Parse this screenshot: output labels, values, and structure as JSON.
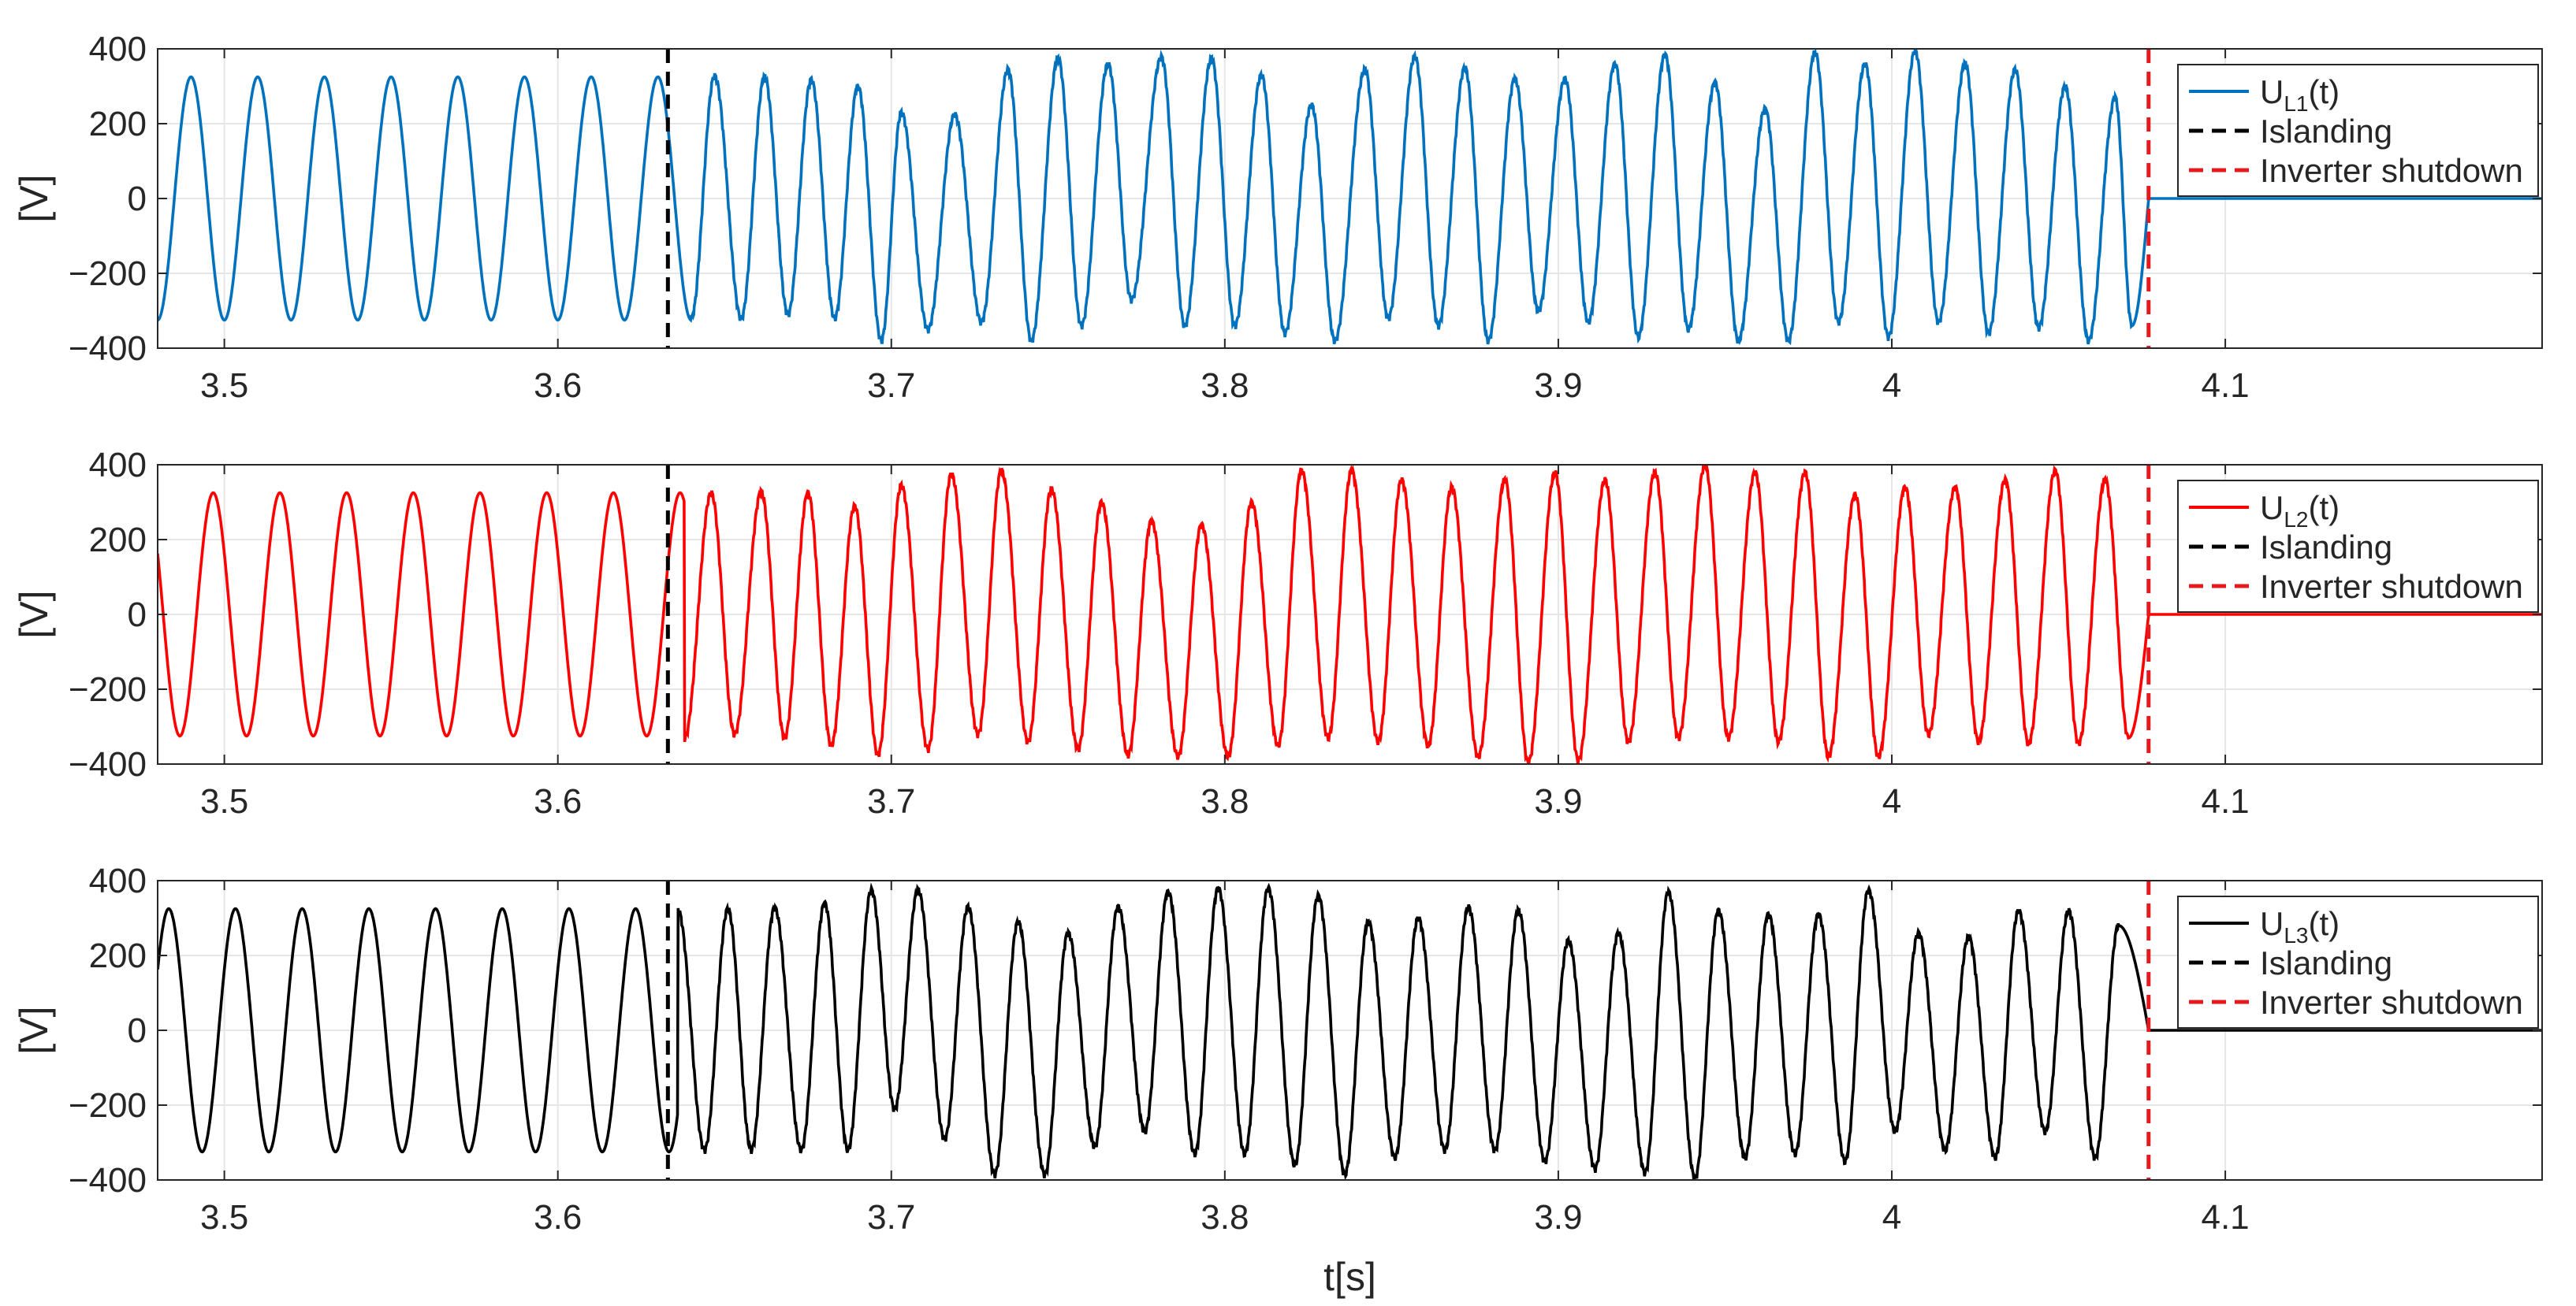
{
  "chart_data": [
    {
      "type": "line",
      "panel": "UL1",
      "ylabel": "[V]",
      "xlabel": "",
      "xlim": [
        3.48,
        4.195
      ],
      "ylim": [
        -400,
        400
      ],
      "xticks": [
        3.5,
        3.6,
        3.7,
        3.8,
        3.9,
        4,
        4.1
      ],
      "xtick_labels": [
        "3.5",
        "3.6",
        "3.7",
        "3.8",
        "3.9",
        "4",
        "4.1"
      ],
      "yticks": [
        -400,
        -200,
        0,
        200,
        400
      ],
      "ytick_labels": [
        "−400",
        "−200",
        "0",
        "200",
        "400"
      ],
      "grid": true,
      "legend_position": "top-right",
      "series": [
        {
          "name": "U",
          "name_subscript": "L1",
          "name_suffix": "(t)",
          "color": "#0072BD",
          "style": "solid",
          "signal": {
            "amplitude": 325,
            "frequency_hz": 50,
            "phase_deg": 90,
            "distorted_until": 4.077,
            "zero_after": 4.077
          },
          "distorted_peaks": [
            [
              3.647,
              328
            ],
            [
              3.662,
              325
            ],
            [
              3.676,
              318
            ],
            [
              3.69,
              300
            ],
            [
              3.703,
              230
            ],
            [
              3.719,
              225
            ],
            [
              3.735,
              345
            ],
            [
              3.75,
              375
            ],
            [
              3.765,
              360
            ],
            [
              3.781,
              378
            ],
            [
              3.796,
              375
            ],
            [
              3.811,
              330
            ],
            [
              3.826,
              250
            ],
            [
              3.842,
              345
            ],
            [
              3.857,
              380
            ],
            [
              3.872,
              350
            ],
            [
              3.887,
              320
            ],
            [
              3.902,
              320
            ],
            [
              3.917,
              360
            ],
            [
              3.932,
              385
            ],
            [
              3.947,
              310
            ],
            [
              3.962,
              240
            ],
            [
              3.977,
              390
            ],
            [
              3.992,
              360
            ],
            [
              4.007,
              395
            ],
            [
              4.022,
              360
            ],
            [
              4.037,
              345
            ],
            [
              4.052,
              300
            ],
            [
              4.067,
              270
            ]
          ],
          "distorted_troughs": [
            [
              3.64,
              -320
            ],
            [
              3.655,
              -320
            ],
            [
              3.669,
              -310
            ],
            [
              3.683,
              -320
            ],
            [
              3.697,
              -380
            ],
            [
              3.711,
              -350
            ],
            [
              3.727,
              -330
            ],
            [
              3.742,
              -380
            ],
            [
              3.757,
              -340
            ],
            [
              3.772,
              -270
            ],
            [
              3.788,
              -340
            ],
            [
              3.803,
              -340
            ],
            [
              3.818,
              -360
            ],
            [
              3.833,
              -380
            ],
            [
              3.849,
              -320
            ],
            [
              3.864,
              -340
            ],
            [
              3.879,
              -380
            ],
            [
              3.894,
              -300
            ],
            [
              3.909,
              -330
            ],
            [
              3.924,
              -370
            ],
            [
              3.939,
              -350
            ],
            [
              3.954,
              -380
            ],
            [
              3.969,
              -380
            ],
            [
              3.984,
              -330
            ],
            [
              3.999,
              -370
            ],
            [
              4.014,
              -330
            ],
            [
              4.029,
              -360
            ],
            [
              4.044,
              -345
            ],
            [
              4.059,
              -380
            ],
            [
              4.072,
              -340
            ]
          ]
        },
        {
          "name": "Islanding",
          "color": "#000000",
          "style": "dashed",
          "x": 3.633
        },
        {
          "name": "Inverter shutdown",
          "color": "#E6191E",
          "style": "dashed",
          "x": 4.077
        }
      ]
    },
    {
      "type": "line",
      "panel": "UL2",
      "ylabel": "[V]",
      "xlabel": "",
      "xlim": [
        3.48,
        4.195
      ],
      "ylim": [
        -400,
        400
      ],
      "xticks": [
        3.5,
        3.6,
        3.7,
        3.8,
        3.9,
        4,
        4.1
      ],
      "xtick_labels": [
        "3.5",
        "3.6",
        "3.7",
        "3.8",
        "3.9",
        "4",
        "4.1"
      ],
      "yticks": [
        -400,
        -200,
        0,
        200,
        400
      ],
      "ytick_labels": [
        "−400",
        "−200",
        "0",
        "200",
        "400"
      ],
      "grid": true,
      "legend_position": "top-right",
      "series": [
        {
          "name": "U",
          "name_subscript": "L2",
          "name_suffix": "(t)",
          "color": "#FF0000",
          "style": "solid",
          "signal": {
            "amplitude": 325,
            "frequency_hz": 50,
            "phase_deg": -30,
            "distorted_until": 4.077,
            "zero_after": 4.077
          },
          "distorted_peaks": [
            [
              3.646,
              325
            ],
            [
              3.661,
              328
            ],
            [
              3.675,
              325
            ],
            [
              3.689,
              290
            ],
            [
              3.703,
              345
            ],
            [
              3.718,
              375
            ],
            [
              3.733,
              385
            ],
            [
              3.748,
              335
            ],
            [
              3.763,
              300
            ],
            [
              3.778,
              250
            ],
            [
              3.793,
              240
            ],
            [
              3.808,
              300
            ],
            [
              3.823,
              385
            ],
            [
              3.838,
              385
            ],
            [
              3.853,
              360
            ],
            [
              3.868,
              340
            ],
            [
              3.884,
              360
            ],
            [
              3.899,
              380
            ],
            [
              3.914,
              360
            ],
            [
              3.929,
              380
            ],
            [
              3.944,
              400
            ],
            [
              3.959,
              380
            ],
            [
              3.974,
              380
            ],
            [
              3.989,
              320
            ],
            [
              4.004,
              340
            ],
            [
              4.019,
              340
            ],
            [
              4.034,
              360
            ],
            [
              4.049,
              385
            ],
            [
              4.064,
              360
            ]
          ],
          "distorted_troughs": [
            [
              3.638,
              -330
            ],
            [
              3.653,
              -320
            ],
            [
              3.668,
              -330
            ],
            [
              3.682,
              -350
            ],
            [
              3.696,
              -375
            ],
            [
              3.711,
              -360
            ],
            [
              3.726,
              -320
            ],
            [
              3.741,
              -340
            ],
            [
              3.756,
              -360
            ],
            [
              3.771,
              -375
            ],
            [
              3.786,
              -380
            ],
            [
              3.801,
              -380
            ],
            [
              3.816,
              -350
            ],
            [
              3.831,
              -330
            ],
            [
              3.846,
              -340
            ],
            [
              3.861,
              -350
            ],
            [
              3.876,
              -380
            ],
            [
              3.891,
              -395
            ],
            [
              3.906,
              -390
            ],
            [
              3.921,
              -340
            ],
            [
              3.936,
              -330
            ],
            [
              3.951,
              -330
            ],
            [
              3.966,
              -340
            ],
            [
              3.981,
              -380
            ],
            [
              3.996,
              -380
            ],
            [
              4.011,
              -320
            ],
            [
              4.026,
              -340
            ],
            [
              4.041,
              -345
            ],
            [
              4.056,
              -345
            ],
            [
              4.071,
              -330
            ]
          ]
        },
        {
          "name": "Islanding",
          "color": "#000000",
          "style": "dashed",
          "x": 3.633
        },
        {
          "name": "Inverter shutdown",
          "color": "#E6191E",
          "style": "dashed",
          "x": 4.077
        }
      ]
    },
    {
      "type": "line",
      "panel": "UL3",
      "ylabel": "[V]",
      "xlabel": "t[s]",
      "xlim": [
        3.48,
        4.195
      ],
      "ylim": [
        -400,
        400
      ],
      "xticks": [
        3.5,
        3.6,
        3.7,
        3.8,
        3.9,
        4,
        4.1
      ],
      "xtick_labels": [
        "3.5",
        "3.6",
        "3.7",
        "3.8",
        "3.9",
        "4",
        "4.1"
      ],
      "yticks": [
        -400,
        -200,
        0,
        200,
        400
      ],
      "ytick_labels": [
        "−400",
        "−200",
        "0",
        "200",
        "400"
      ],
      "grid": true,
      "legend_position": "top-right",
      "series": [
        {
          "name": "U",
          "name_subscript": "L3",
          "name_suffix": "(t)",
          "color": "#000000",
          "style": "solid",
          "signal": {
            "amplitude": 325,
            "frequency_hz": 50,
            "phase_deg": -150,
            "distorted_until": 4.077,
            "zero_after": 4.077
          },
          "distorted_peaks": [
            [
              3.636,
              322
            ],
            [
              3.651,
              325
            ],
            [
              3.665,
              328
            ],
            [
              3.68,
              340
            ],
            [
              3.694,
              375
            ],
            [
              3.708,
              375
            ],
            [
              3.723,
              330
            ],
            [
              3.738,
              290
            ],
            [
              3.753,
              260
            ],
            [
              3.768,
              330
            ],
            [
              3.783,
              370
            ],
            [
              3.798,
              380
            ],
            [
              3.813,
              380
            ],
            [
              3.828,
              360
            ],
            [
              3.843,
              290
            ],
            [
              3.858,
              300
            ],
            [
              3.873,
              330
            ],
            [
              3.888,
              320
            ],
            [
              3.903,
              240
            ],
            [
              3.918,
              260
            ],
            [
              3.933,
              370
            ],
            [
              3.948,
              320
            ],
            [
              3.963,
              310
            ],
            [
              3.978,
              310
            ],
            [
              3.993,
              375
            ],
            [
              4.008,
              260
            ],
            [
              4.023,
              250
            ],
            [
              4.038,
              320
            ],
            [
              4.053,
              320
            ],
            [
              4.068,
              280
            ]
          ],
          "distorted_troughs": [
            [
              3.644,
              -320
            ],
            [
              3.658,
              -320
            ],
            [
              3.673,
              -320
            ],
            [
              3.687,
              -320
            ],
            [
              3.701,
              -210
            ],
            [
              3.716,
              -290
            ],
            [
              3.731,
              -385
            ],
            [
              3.746,
              -385
            ],
            [
              3.761,
              -310
            ],
            [
              3.776,
              -270
            ],
            [
              3.791,
              -330
            ],
            [
              3.806,
              -330
            ],
            [
              3.821,
              -360
            ],
            [
              3.836,
              -385
            ],
            [
              3.851,
              -340
            ],
            [
              3.866,
              -320
            ],
            [
              3.881,
              -320
            ],
            [
              3.896,
              -350
            ],
            [
              3.911,
              -370
            ],
            [
              3.926,
              -380
            ],
            [
              3.941,
              -395
            ],
            [
              3.956,
              -340
            ],
            [
              3.971,
              -330
            ],
            [
              3.986,
              -350
            ],
            [
              4.001,
              -270
            ],
            [
              4.016,
              -320
            ],
            [
              4.031,
              -340
            ],
            [
              4.046,
              -270
            ],
            [
              4.061,
              -340
            ]
          ]
        },
        {
          "name": "Islanding",
          "color": "#000000",
          "style": "dashed",
          "x": 3.633
        },
        {
          "name": "Inverter shutdown",
          "color": "#E6191E",
          "style": "dashed",
          "x": 4.077
        }
      ]
    }
  ]
}
